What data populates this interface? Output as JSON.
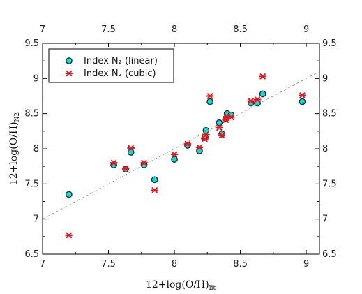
{
  "chart_data": {
    "type": "scatter",
    "title": "",
    "xlabel_main": "12+log(O/H)",
    "xlabel_sub": "lit",
    "ylabel_main": "12+log(O/H)",
    "ylabel_sub": "N2",
    "xlim": [
      7,
      9.1
    ],
    "ylim": [
      6.5,
      9.5
    ],
    "xticks": [
      7,
      7.5,
      8,
      8.5,
      9
    ],
    "xtick_labels": [
      "7",
      "7.5",
      "8",
      "8.5",
      "9"
    ],
    "yticks": [
      6.5,
      7,
      7.5,
      8,
      8.5,
      9,
      9.5
    ],
    "ytick_labels": [
      "6.5",
      "7",
      "7.5",
      "8",
      "8.5",
      "9",
      "9.5"
    ],
    "grid": false,
    "legend_position": "top-left",
    "reference_line": {
      "style": "dashed",
      "points": [
        [
          7,
          7.0
        ],
        [
          9.1,
          9.1
        ]
      ]
    },
    "series": [
      {
        "name": "Index N₂ (linear)",
        "marker": "circle",
        "color": "#00dede",
        "points": [
          [
            7.2,
            7.35
          ],
          [
            7.54,
            7.77
          ],
          [
            7.63,
            7.71
          ],
          [
            7.67,
            7.95
          ],
          [
            7.77,
            7.77
          ],
          [
            7.85,
            7.56
          ],
          [
            8.0,
            7.85
          ],
          [
            8.1,
            8.05
          ],
          [
            8.19,
            7.97
          ],
          [
            8.23,
            8.16
          ],
          [
            8.24,
            8.26
          ],
          [
            8.27,
            8.67
          ],
          [
            8.34,
            8.37
          ],
          [
            8.36,
            8.21
          ],
          [
            8.39,
            8.43
          ],
          [
            8.4,
            8.5
          ],
          [
            8.43,
            8.48
          ],
          [
            8.58,
            8.65
          ],
          [
            8.63,
            8.65
          ],
          [
            8.67,
            8.78
          ],
          [
            8.97,
            8.67
          ]
        ]
      },
      {
        "name": "Index N₂ (cubic)",
        "marker": "asterisk",
        "color": "#e8161b",
        "points": [
          [
            7.2,
            6.77
          ],
          [
            7.54,
            7.8
          ],
          [
            7.63,
            7.72
          ],
          [
            7.67,
            8.01
          ],
          [
            7.77,
            7.8
          ],
          [
            7.85,
            7.41
          ],
          [
            8.0,
            7.92
          ],
          [
            8.1,
            8.07
          ],
          [
            8.19,
            8.02
          ],
          [
            8.23,
            8.14
          ],
          [
            8.24,
            8.2
          ],
          [
            8.27,
            8.75
          ],
          [
            8.34,
            8.3
          ],
          [
            8.36,
            8.19
          ],
          [
            8.39,
            8.41
          ],
          [
            8.4,
            8.46
          ],
          [
            8.43,
            8.45
          ],
          [
            8.58,
            8.68
          ],
          [
            8.63,
            8.7
          ],
          [
            8.67,
            9.03
          ],
          [
            8.97,
            8.76
          ]
        ]
      }
    ]
  }
}
